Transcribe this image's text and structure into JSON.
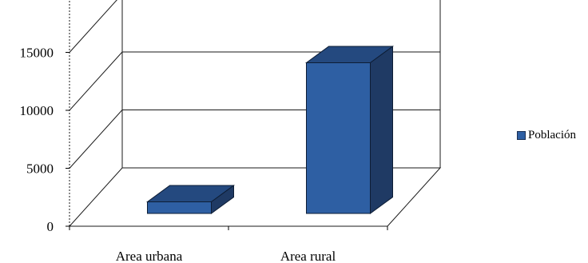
{
  "chart_data": {
    "type": "bar",
    "categories": [
      "Area urbana",
      "Area rural"
    ],
    "series": [
      {
        "name": "Población",
        "values": [
          1000,
          13000
        ]
      }
    ],
    "ylim": [
      0,
      20000
    ],
    "yticks": [
      "0",
      "5000",
      "10000",
      "15000"
    ],
    "grid": true,
    "legend": "right",
    "three_d": true,
    "colors": {
      "front": "#2e5fa3",
      "top": "#24497f",
      "side": "#1f3a64",
      "edge": "#0d1d35"
    }
  }
}
